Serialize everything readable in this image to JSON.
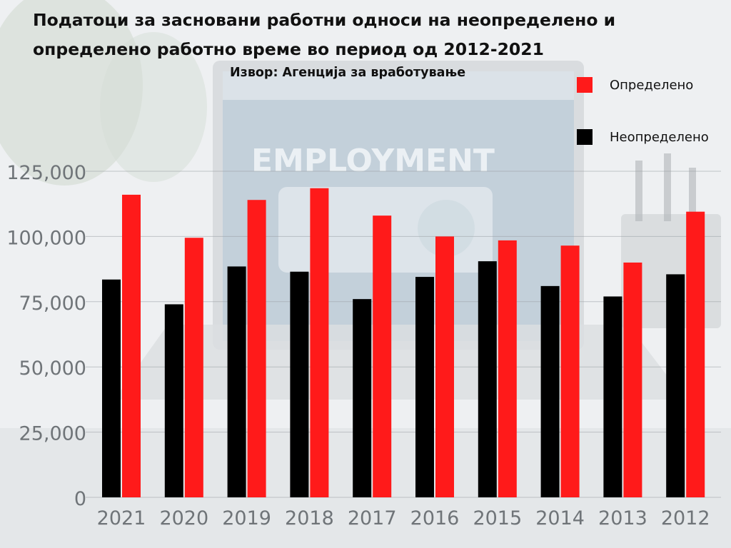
{
  "chart_data": {
    "type": "bar",
    "title": "Податоци за засновани работни односи на неопределено и определено работно време во период од 2012-2021",
    "subtitle": "Извор: Агенција за вработување",
    "xlabel": "",
    "ylabel": "",
    "categories": [
      "2021",
      "2020",
      "2019",
      "2018",
      "2017",
      "2016",
      "2015",
      "2014",
      "2013",
      "2012"
    ],
    "series": [
      {
        "name": "Неопределено",
        "color": "#000000",
        "values": [
          83500,
          74000,
          88500,
          86500,
          76000,
          84500,
          90500,
          81000,
          77000,
          85500
        ]
      },
      {
        "name": "Определено",
        "color": "#ff1a1a",
        "values": [
          116000,
          99500,
          114000,
          118500,
          108000,
          100000,
          98500,
          96500,
          90000,
          109500
        ]
      }
    ],
    "ylim": [
      0,
      125000
    ],
    "yticks": [
      "0",
      "25,000",
      "50,000",
      "75,000",
      "100,000",
      "125,000"
    ],
    "grid": true,
    "legend_position": "top-right"
  }
}
